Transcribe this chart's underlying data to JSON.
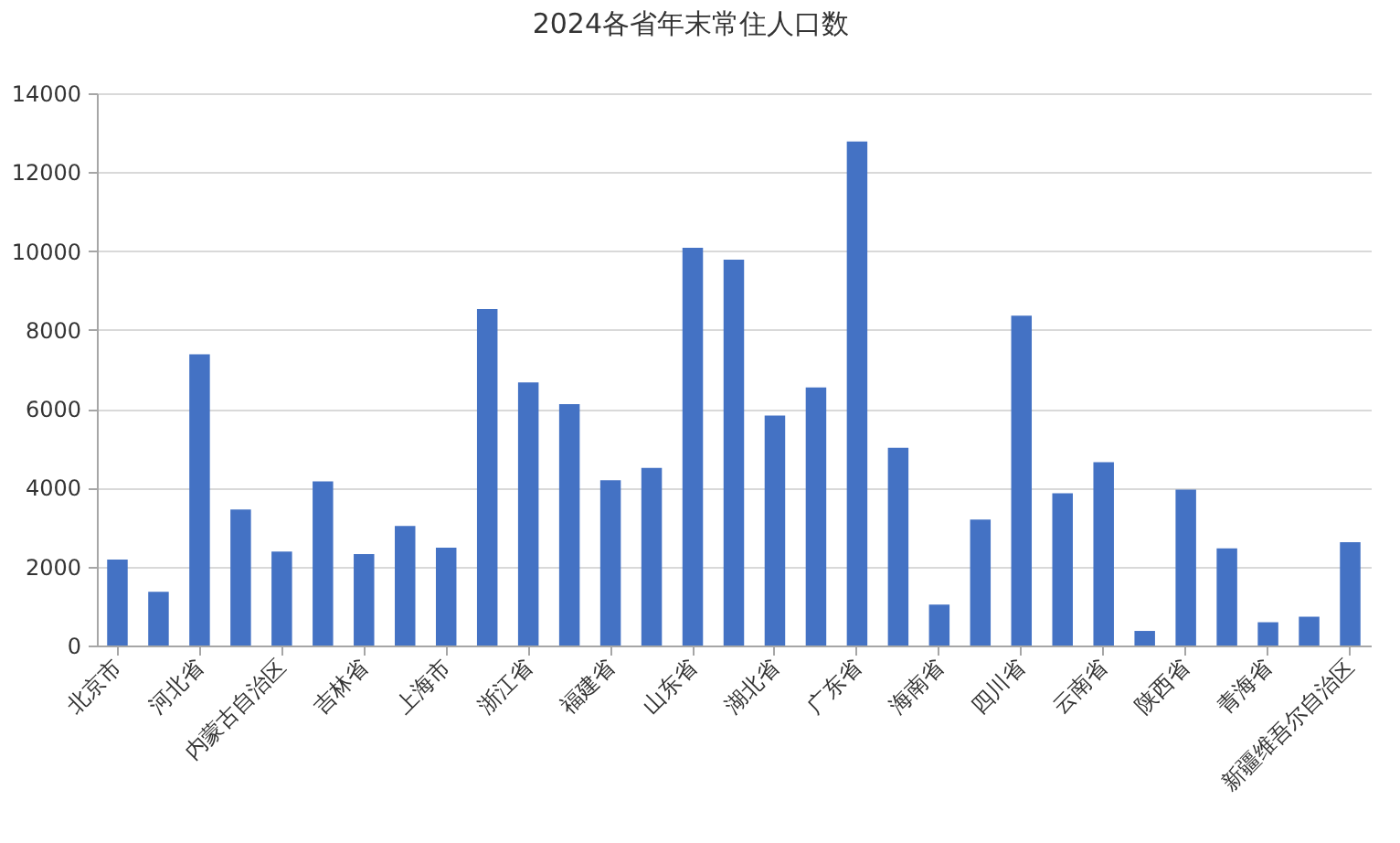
{
  "chart_data": {
    "type": "bar",
    "title": "2024各省年末常住人口数",
    "categories": [
      "北京市",
      null,
      "河北省",
      null,
      "内蒙古自治区",
      null,
      "吉林省",
      null,
      "上海市",
      null,
      "浙江省",
      null,
      "福建省",
      null,
      "山东省",
      null,
      "湖北省",
      null,
      "广东省",
      null,
      "海南省",
      null,
      "四川省",
      null,
      "云南省",
      null,
      "陕西省",
      null,
      "青海省",
      null,
      "新疆维吾尔自治区"
    ],
    "values": [
      2180,
      1360,
      7380,
      3450,
      2380,
      4160,
      2320,
      3030,
      2480,
      8530,
      6670,
      6120,
      4190,
      4500,
      10080,
      9780,
      5830,
      6540,
      12780,
      5010,
      1040,
      3190,
      8360,
      3860,
      4650,
      370,
      3950,
      2460,
      590,
      730,
      2620
    ],
    "color": "#4472c4",
    "ylim": [
      0,
      14000
    ],
    "yticks": [
      0,
      2000,
      4000,
      6000,
      8000,
      10000,
      12000,
      14000
    ],
    "grid": "y"
  }
}
